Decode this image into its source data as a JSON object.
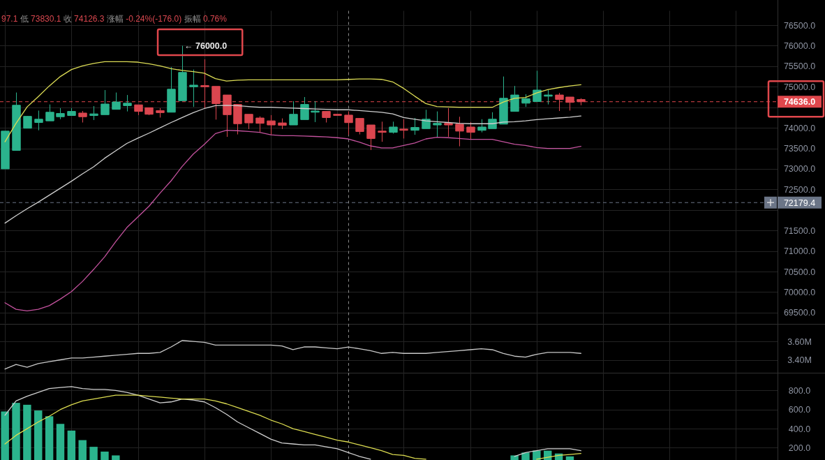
{
  "chart_data": [
    {
      "type": "candlestick",
      "categories": [
        null,
        null,
        null,
        null,
        null,
        null,
        null,
        null,
        null,
        null,
        null,
        null,
        null,
        null,
        null,
        null,
        null,
        null,
        null,
        null,
        null,
        null,
        null,
        null,
        null,
        null,
        null,
        null,
        null,
        null,
        null,
        null,
        null,
        null,
        null,
        null,
        null,
        null,
        null,
        null,
        null,
        null,
        null,
        null,
        null,
        null,
        null,
        null,
        null,
        null,
        null,
        null,
        null
      ],
      "ohlc": [
        [
          73000,
          73920,
          73000,
          73920
        ],
        [
          73450,
          74860,
          73450,
          74550
        ],
        [
          73990,
          74290,
          73990,
          74280
        ],
        [
          74130,
          74420,
          73940,
          74210
        ],
        [
          74170,
          74570,
          74170,
          74380
        ],
        [
          74270,
          74480,
          74210,
          74350
        ],
        [
          74300,
          74480,
          74300,
          74400
        ],
        [
          74360,
          74410,
          74130,
          74270
        ],
        [
          74300,
          74530,
          74190,
          74340
        ],
        [
          74320,
          74920,
          74320,
          74580
        ],
        [
          74450,
          74860,
          74450,
          74630
        ],
        [
          74540,
          74800,
          74400,
          74600
        ],
        [
          74560,
          74560,
          74310,
          74400
        ],
        [
          74490,
          74490,
          74310,
          74330
        ],
        [
          74420,
          74480,
          74250,
          74370
        ],
        [
          74380,
          75480,
          74380,
          74940
        ],
        [
          74660,
          76000,
          74660,
          75350
        ],
        [
          75000,
          75420,
          74510,
          75040
        ],
        [
          75030,
          75670,
          74480,
          75000
        ],
        [
          75010,
          75010,
          74200,
          74590
        ],
        [
          74800,
          74800,
          73780,
          74320
        ],
        [
          74570,
          74570,
          73840,
          74100
        ],
        [
          74330,
          74330,
          73970,
          74120
        ],
        [
          74240,
          74280,
          73900,
          74110
        ],
        [
          74170,
          74310,
          73830,
          74070
        ],
        [
          74120,
          74230,
          73970,
          74060
        ],
        [
          74070,
          74650,
          74070,
          74330
        ],
        [
          74200,
          74750,
          74200,
          74570
        ],
        [
          74380,
          74650,
          74140,
          74410
        ],
        [
          74400,
          74400,
          74130,
          74250
        ],
        [
          74330,
          74330,
          74300,
          74302.3
        ],
        [
          74310,
          74397.1,
          73830.1,
          74126.3
        ],
        [
          74230,
          74230,
          73840,
          73910
        ],
        [
          74070,
          74070,
          73460,
          73740
        ],
        [
          73920,
          74150,
          73660,
          73890
        ],
        [
          73890,
          74150,
          73860,
          74020
        ],
        [
          73970,
          74210,
          73740,
          73940
        ],
        [
          73940,
          74240,
          73830,
          74010
        ],
        [
          73980,
          74440,
          73980,
          74210
        ],
        [
          74070,
          74400,
          73770,
          74110
        ],
        [
          74110,
          74480,
          73780,
          74070
        ],
        [
          74090,
          74270,
          73550,
          73920
        ],
        [
          74020,
          74140,
          73720,
          73890
        ],
        [
          73940,
          74210,
          73890,
          74020
        ],
        [
          73980,
          74380,
          73980,
          74210
        ],
        [
          74090,
          75250,
          74090,
          74720
        ],
        [
          74400,
          75020,
          74400,
          74800
        ],
        [
          74600,
          74820,
          74510,
          74710
        ],
        [
          74640,
          75390,
          74640,
          74920
        ],
        [
          74770,
          74920,
          74570,
          74800
        ],
        [
          74800,
          74850,
          74410,
          74690
        ],
        [
          74750,
          74750,
          74420,
          74620
        ],
        [
          74690,
          74720,
          74550,
          74636
        ]
      ],
      "colors": [
        "#2bb38d",
        "#2bb38d",
        "#2bb38d",
        "#2bb38d",
        "#2bb38d",
        "#2bb38d",
        "#2bb38d",
        "#db464f",
        "#2bb38d",
        "#2bb38d",
        "#2bb38d",
        "#2bb38d",
        "#db464f",
        "#db464f",
        "#db464f",
        "#2bb38d",
        "#2bb38d",
        "#2bb38d",
        "#db464f",
        "#db464f",
        "#db464f",
        "#db464f",
        "#db464f",
        "#db464f",
        "#db464f",
        "#db464f",
        "#2bb38d",
        "#2bb38d",
        "#2bb38d",
        "#db464f",
        "#db464f",
        "#db464f",
        "#db464f",
        "#db464f",
        "#db464f",
        "#2bb38d",
        "#db464f",
        "#2bb38d",
        "#2bb38d",
        "#2bb38d",
        "#db464f",
        "#db464f",
        "#db464f",
        "#2bb38d",
        "#2bb38d",
        "#2bb38d",
        "#2bb38d",
        "#2bb38d",
        "#2bb38d",
        "#2bb38d",
        "#db464f",
        "#db464f",
        "#db464f"
      ],
      "series": [
        {
          "type": "line",
          "color": "#dcdc55",
          "values": [
            73660,
            74110,
            74510,
            74760,
            75020,
            75250,
            75420,
            75510,
            75570,
            75610,
            75610,
            75610,
            75600,
            75560,
            75510,
            75440,
            75400,
            75370,
            75330,
            75200,
            75140,
            75160,
            75170,
            75170,
            75170,
            75170,
            75170,
            75170,
            75170,
            75170,
            75170,
            75180,
            75190,
            75190,
            75180,
            75120,
            74960,
            74770,
            74590,
            74520,
            74510,
            74500,
            74500,
            74500,
            74500,
            74630,
            74720,
            74740,
            74850,
            74930,
            74980,
            75020,
            75050
          ]
        },
        {
          "type": "line",
          "color": "#cfcfcf",
          "values": [
            71680,
            71860,
            72030,
            72190,
            72360,
            72530,
            72700,
            72880,
            73050,
            73260,
            73440,
            73620,
            73750,
            73870,
            74000,
            74130,
            74250,
            74370,
            74470,
            74540,
            74550,
            74540,
            74520,
            74500,
            74500,
            74490,
            74480,
            74470,
            74460,
            74450,
            74440,
            74440,
            74420,
            74400,
            74380,
            74340,
            74250,
            74210,
            74170,
            74150,
            74130,
            74110,
            74100,
            74100,
            74100,
            74140,
            74150,
            74170,
            74200,
            74220,
            74240,
            74260,
            74290
          ]
        },
        {
          "type": "line",
          "color": "#c4529e",
          "values": [
            69740,
            69580,
            69540,
            69580,
            69670,
            69830,
            70010,
            70260,
            70550,
            70860,
            71230,
            71570,
            71830,
            72090,
            72410,
            72710,
            73060,
            73360,
            73600,
            73860,
            73940,
            73930,
            73910,
            73890,
            73830,
            73810,
            73810,
            73800,
            73790,
            73780,
            73760,
            73730,
            73650,
            73560,
            73510,
            73510,
            73570,
            73630,
            73730,
            73770,
            73760,
            73740,
            73720,
            73720,
            73720,
            73660,
            73600,
            73570,
            73520,
            73500,
            73500,
            73500,
            73550
          ]
        }
      ],
      "ylim": [
        69230,
        76850
      ],
      "yticks": [
        {
          "value": 69500,
          "label": "69500.0"
        },
        {
          "value": 70000,
          "label": "70000.0"
        },
        {
          "value": 70500,
          "label": "70500.0"
        },
        {
          "value": 71000,
          "label": "71000.0"
        },
        {
          "value": 71500,
          "label": "71500.0"
        },
        {
          "value": 72000,
          "label": null
        },
        {
          "value": 72500,
          "label": "72500.0"
        },
        {
          "value": 73000,
          "label": "73000.0"
        },
        {
          "value": 73500,
          "label": "73500.0"
        },
        {
          "value": 74000,
          "label": "74000.0"
        },
        {
          "value": 74500,
          "label": null
        },
        {
          "value": 75000,
          "label": "75000.0"
        },
        {
          "value": 75500,
          "label": "75500.0"
        },
        {
          "value": 76000,
          "label": "76000.0"
        },
        {
          "value": 76500,
          "label": "76500.0"
        }
      ],
      "grid": true,
      "tick_labels": "y",
      "ref_lines": [
        {
          "axis": "y",
          "value": 74636,
          "label": "74636.0",
          "color": "#e0474c",
          "line_style": "dashed"
        },
        {
          "axis": "y",
          "value": 72179.4,
          "label": "72179.4",
          "color": "#6b7587",
          "line_style": "dashed"
        }
      ],
      "annotations": [
        "97.1 低 73830.1 收 74126.3 涨幅 -0.24%(-176.0) 振幅 0.76%",
        "← 76000.0"
      ]
    },
    {
      "type": "line",
      "categories": [
        null,
        null,
        null,
        null,
        null,
        null,
        null,
        null,
        null,
        null,
        null,
        null,
        null,
        null,
        null,
        null,
        null,
        null,
        null,
        null,
        null,
        null,
        null,
        null,
        null,
        null,
        null,
        null,
        null,
        null,
        null,
        null,
        null,
        null,
        null,
        null,
        null,
        null,
        null,
        null,
        null,
        null,
        null,
        null,
        null,
        null,
        null,
        null,
        null,
        null,
        null,
        null,
        null
      ],
      "series": [
        {
          "color": "#c8c8c8",
          "values": [
            3.3,
            3.35,
            3.32,
            3.36,
            3.38,
            3.4,
            3.42,
            3.42,
            3.43,
            3.44,
            3.45,
            3.46,
            3.47,
            3.47,
            3.48,
            3.54,
            3.61,
            3.6,
            3.59,
            3.56,
            3.56,
            3.56,
            3.56,
            3.56,
            3.56,
            3.55,
            3.51,
            3.54,
            3.54,
            3.53,
            3.52,
            3.54,
            3.52,
            3.5,
            3.47,
            3.48,
            3.47,
            3.47,
            3.47,
            3.48,
            3.49,
            3.5,
            3.51,
            3.52,
            3.51,
            3.47,
            3.44,
            3.43,
            3.46,
            3.48,
            3.48,
            3.48,
            3.47
          ]
        }
      ],
      "ylim": [
        3.26,
        3.79
      ],
      "yticks": [
        {
          "value": 3.4,
          "label": "3.40M"
        },
        {
          "value": 3.6,
          "label": "3.60M"
        }
      ],
      "grid": true,
      "tick_labels": "y"
    },
    {
      "type": "bar",
      "categories": [
        null,
        null,
        null,
        null,
        null,
        null,
        null,
        null,
        null,
        null,
        null,
        null,
        null,
        null,
        null,
        null,
        null,
        null,
        null,
        null,
        null,
        null,
        null,
        null,
        null,
        null,
        null,
        null,
        null,
        null,
        null,
        null,
        null,
        null,
        null,
        null,
        null,
        null,
        null,
        null,
        null,
        null,
        null,
        null,
        null,
        null,
        null,
        null,
        null,
        null,
        null,
        null,
        null
      ],
      "series": [
        {
          "type": "bar",
          "color": "#2bb38d",
          "values": [
            580,
            670,
            650,
            590,
            530,
            450,
            380,
            280,
            210,
            160,
            120,
            null,
            null,
            null,
            null,
            null,
            null,
            null,
            null,
            null,
            null,
            null,
            null,
            null,
            null,
            null,
            null,
            null,
            null,
            null,
            null,
            null,
            null,
            null,
            null,
            null,
            null,
            null,
            null,
            null,
            null,
            null,
            null,
            null,
            null,
            null,
            120,
            150,
            170,
            170,
            140,
            110,
            null
          ]
        },
        {
          "type": "line",
          "color": "#d0d0d0",
          "values": [
            540,
            690,
            740,
            780,
            820,
            830,
            840,
            820,
            810,
            810,
            800,
            780,
            750,
            710,
            670,
            680,
            710,
            700,
            680,
            620,
            550,
            470,
            410,
            350,
            290,
            250,
            240,
            230,
            230,
            210,
            190,
            150,
            110,
            80,
            null,
            null,
            null,
            null,
            null,
            null,
            null,
            null,
            null,
            null,
            null,
            null,
            null,
            null,
            null,
            null,
            null,
            null,
            null
          ]
        },
        {
          "type": "line",
          "color": "#d0d0d0",
          "values": [
            null,
            null,
            null,
            null,
            null,
            null,
            null,
            null,
            null,
            null,
            null,
            null,
            null,
            null,
            null,
            null,
            null,
            null,
            null,
            null,
            null,
            null,
            null,
            null,
            null,
            null,
            null,
            null,
            null,
            null,
            null,
            null,
            null,
            null,
            null,
            null,
            null,
            null,
            null,
            null,
            null,
            null,
            null,
            null,
            null,
            null,
            110,
            150,
            170,
            190,
            190,
            190,
            170
          ]
        },
        {
          "type": "line",
          "color": "#dcdc50",
          "values": [
            240,
            330,
            400,
            470,
            530,
            600,
            650,
            690,
            710,
            730,
            750,
            750,
            750,
            740,
            730,
            720,
            710,
            710,
            710,
            690,
            660,
            620,
            580,
            540,
            490,
            450,
            400,
            370,
            340,
            310,
            280,
            260,
            230,
            200,
            170,
            130,
            120,
            90,
            80,
            null,
            null,
            null,
            null,
            null,
            null,
            null,
            null,
            null,
            null,
            null,
            null,
            null,
            null
          ]
        },
        {
          "type": "line",
          "color": "#dcdc50",
          "values": [
            null,
            null,
            null,
            null,
            null,
            null,
            null,
            null,
            null,
            null,
            null,
            null,
            null,
            null,
            null,
            null,
            null,
            null,
            null,
            null,
            null,
            null,
            null,
            null,
            null,
            null,
            null,
            null,
            null,
            null,
            null,
            null,
            null,
            null,
            null,
            null,
            null,
            null,
            null,
            null,
            null,
            null,
            null,
            null,
            null,
            null,
            null,
            null,
            80,
            100,
            120,
            130,
            140
          ]
        }
      ],
      "ylim": [
        72,
        985
      ],
      "yticks": [
        {
          "value": 200,
          "label": "200.0"
        },
        {
          "value": 400,
          "label": "400.0"
        },
        {
          "value": 600,
          "label": "600.0"
        },
        {
          "value": 800,
          "label": "800.0"
        }
      ],
      "grid": true,
      "tick_labels": "y"
    }
  ]
}
